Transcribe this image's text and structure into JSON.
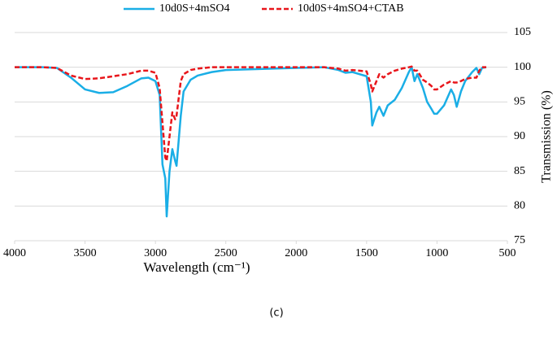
{
  "chart_data": {
    "type": "line",
    "x_label": "Wavelength (cm⁻¹)",
    "y_label": "Transmission (%)",
    "x": [
      4000,
      3800,
      3700,
      3600,
      3500,
      3400,
      3300,
      3200,
      3100,
      3050,
      3000,
      2970,
      2950,
      2930,
      2920,
      2900,
      2880,
      2860,
      2850,
      2820,
      2800,
      2750,
      2700,
      2600,
      2500,
      2000,
      1800,
      1700,
      1650,
      1600,
      1500,
      1470,
      1460,
      1430,
      1410,
      1380,
      1350,
      1300,
      1250,
      1200,
      1180,
      1160,
      1140,
      1100,
      1070,
      1040,
      1020,
      1000,
      950,
      900,
      880,
      860,
      830,
      800,
      750,
      720,
      700,
      680,
      650
    ],
    "series": [
      {
        "name": "10d0S+4mSO4",
        "color": "#1aaee6",
        "line_style": "solid",
        "values": [
          100,
          100,
          99.9,
          98.5,
          96.8,
          96.3,
          96.4,
          97.3,
          98.4,
          98.5,
          98,
          96,
          86,
          84,
          78.5,
          85,
          88.2,
          86.5,
          85.8,
          93,
          96.5,
          98.2,
          98.8,
          99.3,
          99.6,
          99.9,
          100,
          99.6,
          99.2,
          99.3,
          98.7,
          95,
          91.6,
          93.5,
          94.3,
          93,
          94.5,
          95.3,
          97,
          99.3,
          100,
          98,
          99,
          97,
          95,
          94,
          93.3,
          93.3,
          94.5,
          96.8,
          96,
          94.3,
          96.5,
          98,
          99.3,
          99.9,
          99,
          99.9,
          100
        ]
      },
      {
        "name": "10d0S+4mSO4+CTAB",
        "color": "#e8161b",
        "line_style": "dashed",
        "values": [
          100,
          100,
          99.9,
          98.8,
          98.3,
          98.4,
          98.7,
          99,
          99.5,
          99.5,
          99.2,
          97,
          92,
          87,
          86.5,
          90,
          93.5,
          92.5,
          93,
          98,
          99,
          99.6,
          99.8,
          100,
          100,
          100,
          100,
          99.8,
          99.5,
          99.6,
          99.4,
          97.5,
          96.5,
          98,
          99,
          98.5,
          99,
          99.5,
          99.8,
          100,
          100.1,
          99.5,
          99.5,
          98.2,
          97.8,
          97.3,
          96.8,
          96.8,
          97.5,
          98,
          97.8,
          97.8,
          98,
          98.3,
          98.5,
          98.5,
          99.5,
          100,
          100
        ]
      }
    ],
    "xlim": [
      4000,
      500
    ],
    "xticks": [
      4000,
      3500,
      3000,
      2500,
      2000,
      1500,
      1000,
      500
    ],
    "ylim": [
      75,
      105
    ],
    "yticks": [
      75,
      80,
      85,
      90,
      95,
      100,
      105
    ],
    "grid": true,
    "y_axis_side": "right",
    "legend_position": "top"
  },
  "caption": "(c)"
}
